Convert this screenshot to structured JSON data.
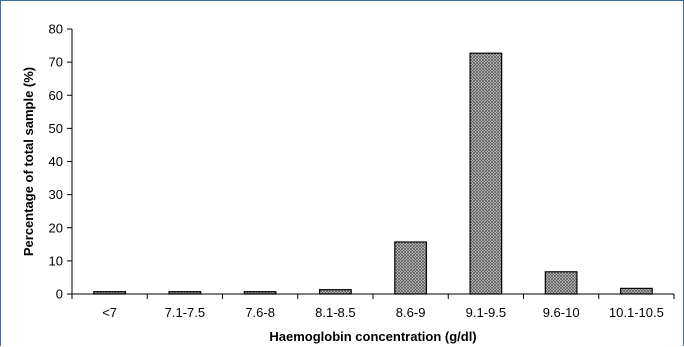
{
  "chart_data": {
    "type": "bar",
    "categories": [
      "<7",
      "7.1-7.5",
      "7.6-8",
      "8.1-8.5",
      "8.6-9",
      "9.1-9.5",
      "9.6-10",
      "10.1-10.5"
    ],
    "values": [
      0.7,
      0.7,
      0.7,
      1.3,
      15.7,
      72.7,
      6.7,
      1.7
    ],
    "xlabel": "Haemoglobin concentration (g/dl)",
    "ylabel": "Percentage of total sample (%)",
    "ylim": [
      0,
      80
    ],
    "yticks": [
      0,
      10,
      20,
      30,
      40,
      50,
      60,
      70,
      80
    ],
    "grid": false,
    "bar_fill_pattern": "crosshatch",
    "colors": {
      "bar_fill": "#bdbdbd",
      "bar_stroke": "#000000",
      "axis": "#000000",
      "frame": "#3a6ea5"
    }
  }
}
